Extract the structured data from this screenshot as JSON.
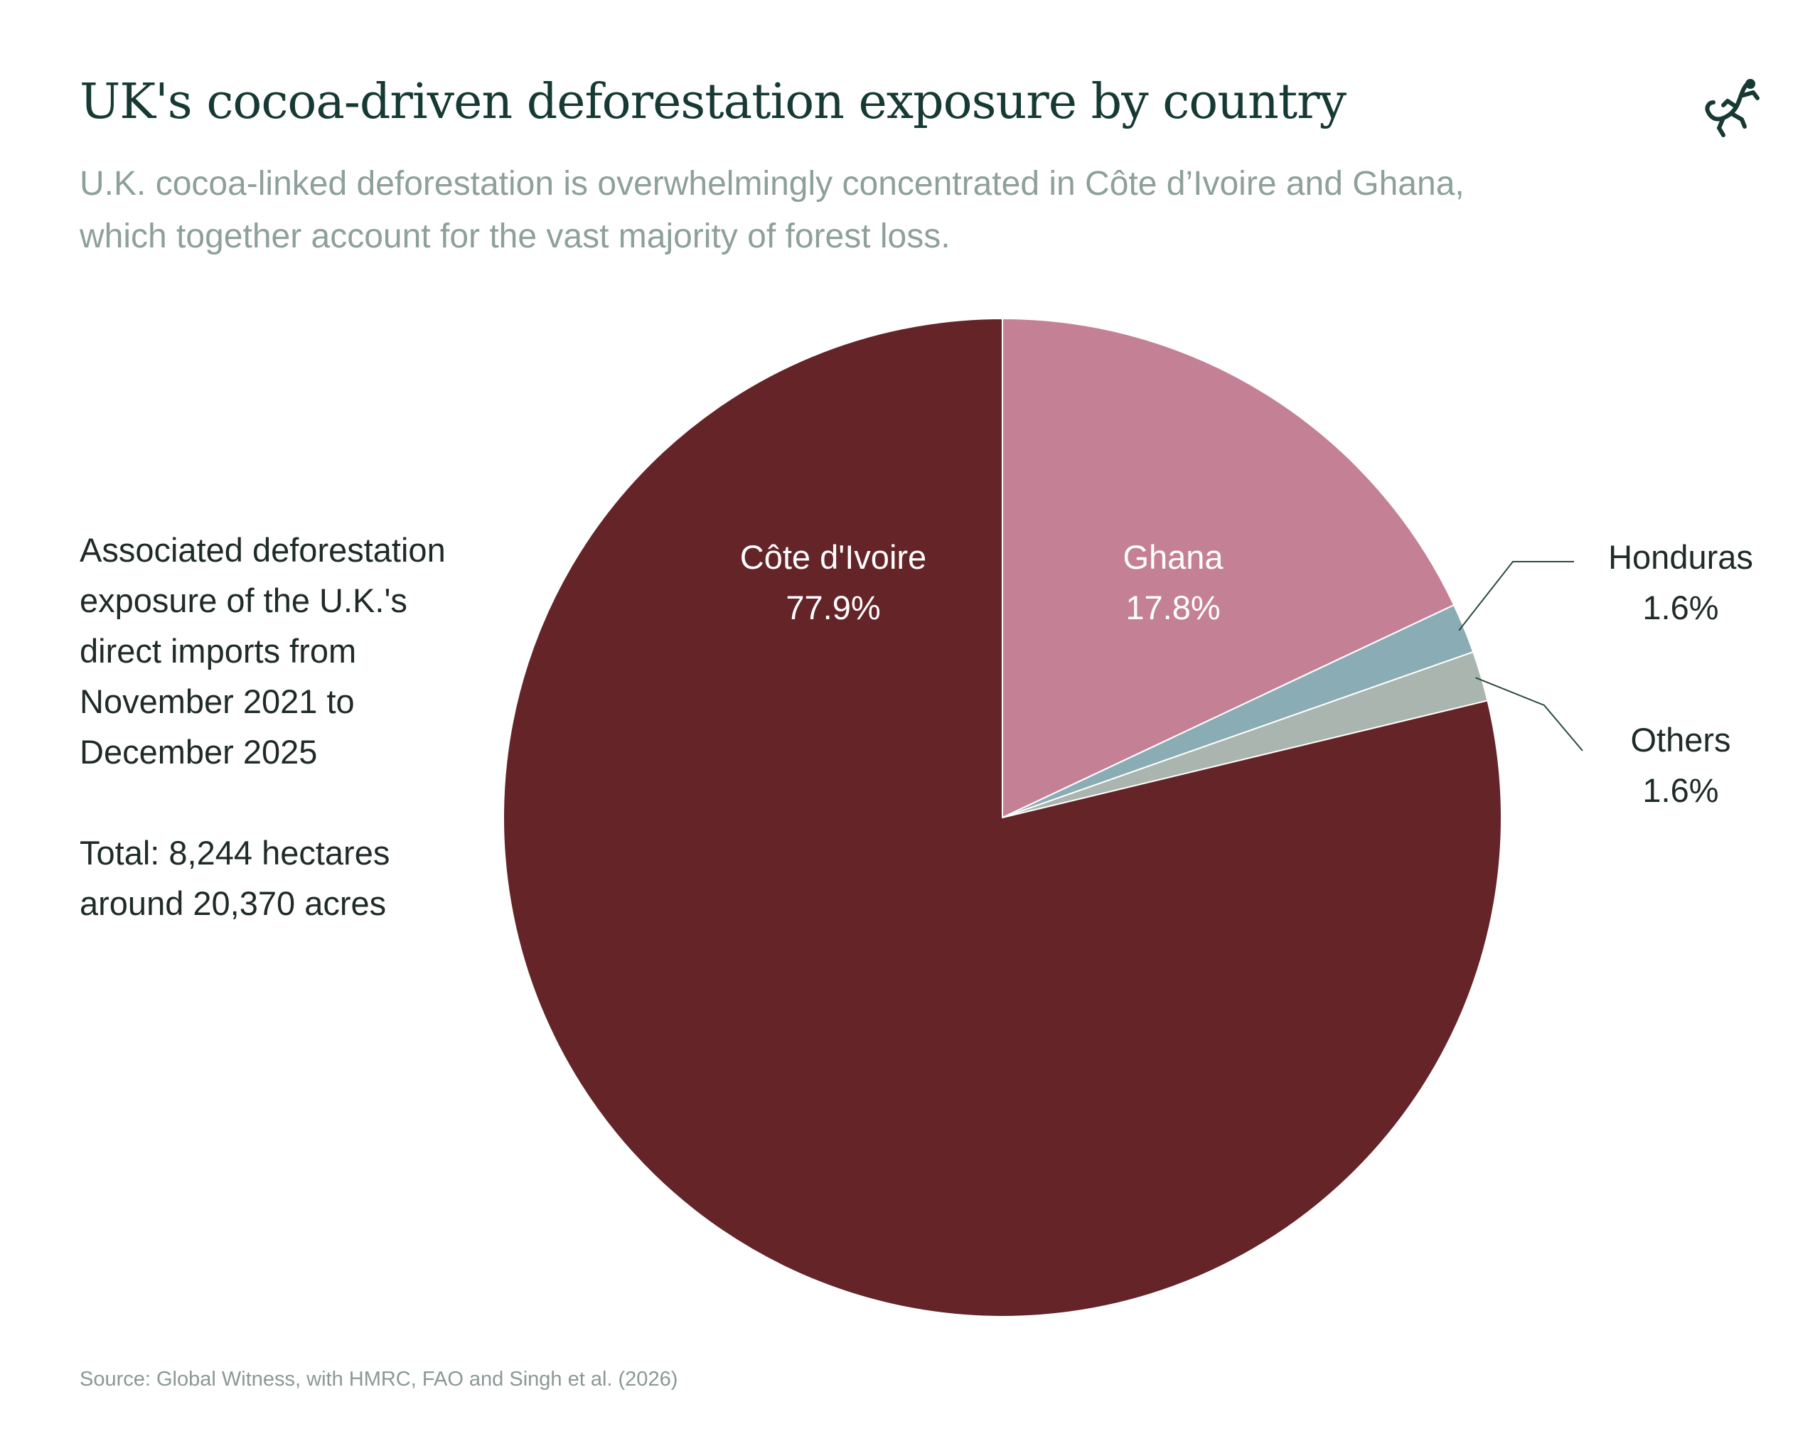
{
  "title": "UK's cocoa-driven deforestation exposure by country",
  "subtitle_lines": [
    "U.K. cocoa-linked deforestation is overwhelmingly concentrated in Côte d’Ivoire and Ghana,",
    "which together account for the vast majority of forest loss."
  ],
  "note": {
    "lines": [
      "Associated deforestation",
      "exposure of the U.K.'s",
      "direct imports from",
      "November 2021 to",
      "December 2025"
    ],
    "total_lines": [
      "Total: 8,244 hectares",
      "around 20,370 acres"
    ]
  },
  "source": "Source: Global Witness, with HMRC, FAO and Singh et al. (2026)",
  "logo_icon": "gecko-icon",
  "colors": {
    "title": "#163a33",
    "subtitle": "#8ea09b",
    "cote_divoire": "#652428",
    "ghana": "#c48196",
    "honduras": "#8aacb4",
    "others": "#a9b5ae"
  },
  "chart_data": {
    "type": "pie",
    "unit": "%",
    "slices": [
      {
        "label": "Côte d'Ivoire",
        "value_label": "77.9%",
        "value": 77.9,
        "color": "#652428",
        "label_color": "#ffffff"
      },
      {
        "label": "Ghana",
        "value_label": "17.8%",
        "value": 17.8,
        "color": "#c48196",
        "label_color": "#ffffff"
      },
      {
        "label": "Honduras",
        "value_label": "1.6%",
        "value": 1.6,
        "color": "#8aacb4",
        "label_color": "#1f2b28"
      },
      {
        "label": "Others",
        "value_label": "1.6%",
        "value": 1.6,
        "color": "#a9b5ae",
        "label_color": "#1f2b28"
      }
    ],
    "start": "12 o'clock",
    "direction": "clockwise, Ghana first",
    "legend": "none"
  }
}
